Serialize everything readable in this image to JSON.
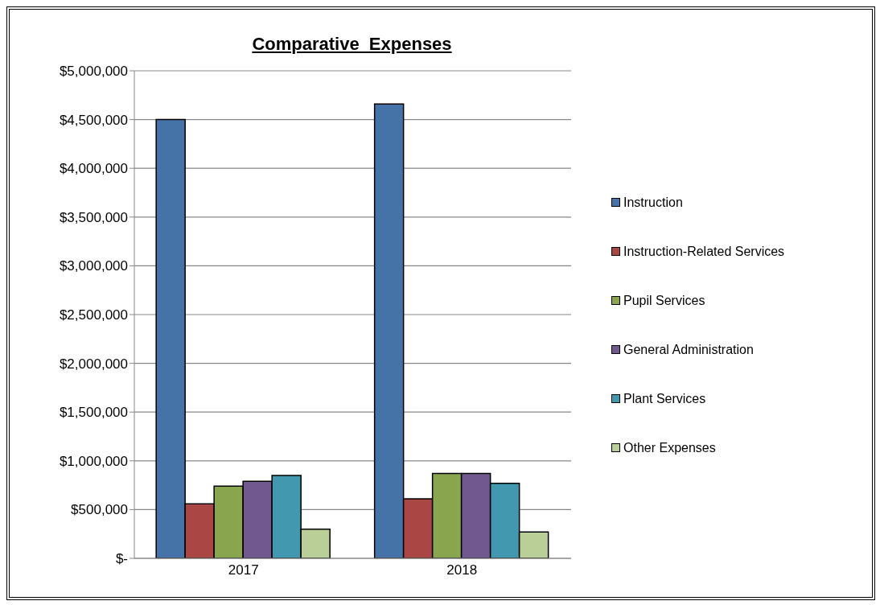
{
  "chart_data": {
    "type": "bar",
    "title": "Comparative  Expenses",
    "categories": [
      "2017",
      "2018"
    ],
    "series": [
      {
        "name": "Instruction",
        "color": "#4572a7",
        "values": [
          4500000,
          4660000
        ]
      },
      {
        "name": "Instruction-Related Services",
        "color": "#aa4643",
        "values": [
          560000,
          610000
        ]
      },
      {
        "name": "Pupil Services",
        "color": "#89a54e",
        "values": [
          740000,
          870000
        ]
      },
      {
        "name": "General Administration",
        "color": "#71588f",
        "values": [
          790000,
          870000
        ]
      },
      {
        "name": "Plant Services",
        "color": "#4198af",
        "values": [
          850000,
          770000
        ]
      },
      {
        "name": "Other Expenses",
        "color": "#bacf97",
        "values": [
          300000,
          270000
        ]
      }
    ],
    "ylim": [
      0,
      5000000
    ],
    "yticks": [
      {
        "value": 0,
        "label": "$-"
      },
      {
        "value": 500000,
        "label": "$500,000"
      },
      {
        "value": 1000000,
        "label": "$1,000,000"
      },
      {
        "value": 1500000,
        "label": "$1,500,000"
      },
      {
        "value": 2000000,
        "label": "$2,000,000"
      },
      {
        "value": 2500000,
        "label": "$2,500,000"
      },
      {
        "value": 3000000,
        "label": "$3,000,000"
      },
      {
        "value": 3500000,
        "label": "$3,500,000"
      },
      {
        "value": 4000000,
        "label": "$4,000,000"
      },
      {
        "value": 4500000,
        "label": "$4,500,000"
      },
      {
        "value": 5000000,
        "label": "$5,000,000"
      }
    ],
    "grid": "y",
    "legend": "right"
  }
}
